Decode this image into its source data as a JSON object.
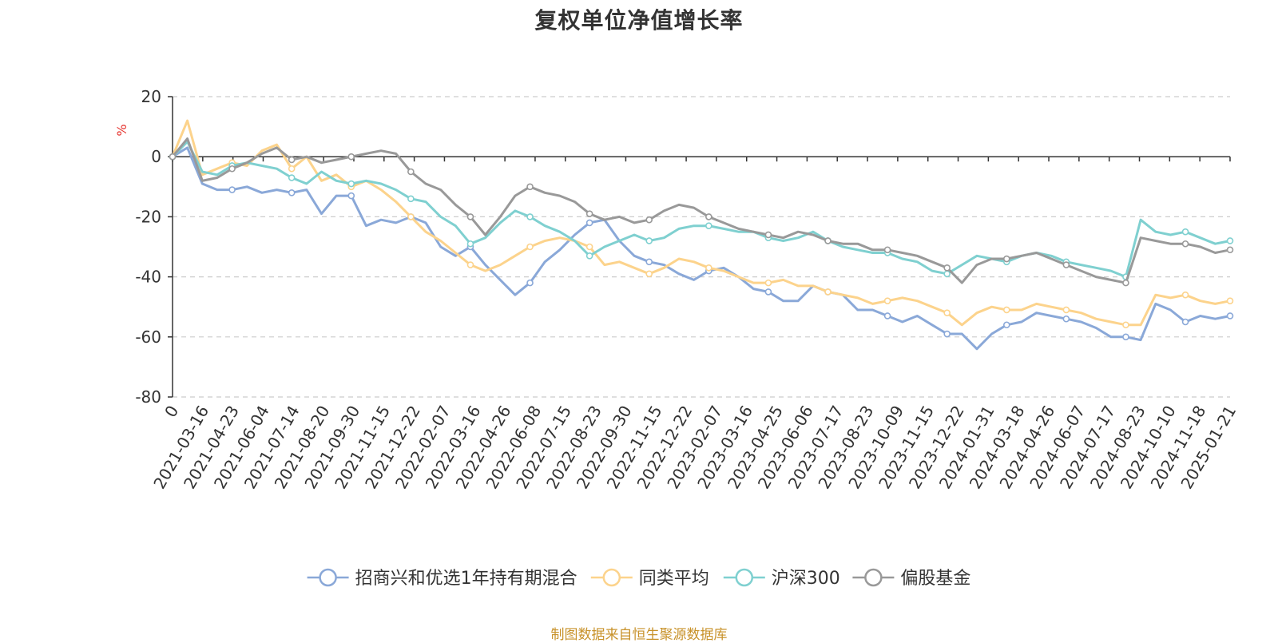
{
  "chart_data": {
    "type": "line",
    "title": "复权单位净值增长率",
    "unit": "%",
    "ylim": [
      -80,
      20
    ],
    "y_ticks": [
      20,
      0,
      -20,
      -40,
      -60,
      -80
    ],
    "grid": "horizontal dashed",
    "legend_position": "bottom-center",
    "x_origin_label": "0",
    "x_ticks": [
      "2021-03-16",
      "2021-04-23",
      "2021-06-04",
      "2021-07-14",
      "2021-08-20",
      "2021-09-30",
      "2021-11-15",
      "2021-12-22",
      "2022-02-07",
      "2022-03-16",
      "2022-04-26",
      "2022-06-08",
      "2022-07-15",
      "2022-08-23",
      "2022-09-30",
      "2022-11-15",
      "2022-12-22",
      "2023-02-07",
      "2023-03-16",
      "2023-04-25",
      "2023-06-06",
      "2023-07-17",
      "2023-08-23",
      "2023-10-09",
      "2023-11-15",
      "2023-12-22",
      "2024-01-31",
      "2024-03-18",
      "2024-04-26",
      "2024-06-07",
      "2024-07-17",
      "2024-08-23",
      "2024-10-10",
      "2024-11-18",
      "2025-01-21"
    ],
    "series": [
      {
        "name": "招商兴和优选1年持有期混合",
        "color": "#8aa8d8",
        "values": [
          0,
          3,
          -9,
          -11,
          -11,
          -10,
          -12,
          -11,
          -12,
          -11,
          -19,
          -13,
          -13,
          -23,
          -21,
          -22,
          -20,
          -22,
          -30,
          -33,
          -30,
          -36,
          -41,
          -46,
          -42,
          -35,
          -31,
          -26,
          -22,
          -21,
          -28,
          -33,
          -35,
          -36,
          -39,
          -41,
          -38,
          -37,
          -40,
          -44,
          -45,
          -48,
          -48,
          -43,
          -45,
          -46,
          -51,
          -51,
          -53,
          -55,
          -53,
          -56,
          -59,
          -59,
          -64,
          -59,
          -56,
          -55,
          -52,
          -53,
          -54,
          -55,
          -57,
          -60,
          -60,
          -61,
          -49,
          -51,
          -55,
          -53,
          -54,
          -53
        ]
      },
      {
        "name": "同类平均",
        "color": "#fcd38c",
        "values": [
          0,
          12,
          -6,
          -4,
          -2,
          -3,
          2,
          4,
          -4,
          0,
          -8,
          -6,
          -10,
          -8,
          -11,
          -15,
          -20,
          -25,
          -28,
          -32,
          -36,
          -38,
          -36,
          -33,
          -30,
          -28,
          -27,
          -28,
          -30,
          -36,
          -35,
          -37,
          -39,
          -37,
          -34,
          -35,
          -37,
          -38,
          -40,
          -42,
          -42,
          -41,
          -43,
          -43,
          -45,
          -46,
          -47,
          -49,
          -48,
          -47,
          -48,
          -50,
          -52,
          -56,
          -52,
          -50,
          -51,
          -51,
          -49,
          -50,
          -51,
          -52,
          -54,
          -55,
          -56,
          -56,
          -46,
          -47,
          -46,
          -48,
          -49,
          -48
        ]
      },
      {
        "name": "沪深300",
        "color": "#7fd0d0",
        "values": [
          0,
          5,
          -5,
          -6,
          -3,
          -2,
          -3,
          -4,
          -7,
          -9,
          -5,
          -8,
          -9,
          -8,
          -9,
          -11,
          -14,
          -15,
          -20,
          -23,
          -29,
          -27,
          -22,
          -18,
          -20,
          -23,
          -25,
          -28,
          -33,
          -30,
          -28,
          -26,
          -28,
          -27,
          -24,
          -23,
          -23,
          -24,
          -25,
          -25,
          -27,
          -28,
          -27,
          -25,
          -28,
          -30,
          -31,
          -32,
          -32,
          -34,
          -35,
          -38,
          -39,
          -36,
          -33,
          -34,
          -35,
          -33,
          -32,
          -33,
          -35,
          -36,
          -37,
          -38,
          -40,
          -21,
          -25,
          -26,
          -25,
          -27,
          -29,
          -28
        ]
      },
      {
        "name": "偏股基金",
        "color": "#999999",
        "values": [
          0,
          6,
          -8,
          -7,
          -4,
          -2,
          1,
          3,
          -1,
          0,
          -2,
          -1,
          0,
          1,
          2,
          1,
          -5,
          -9,
          -11,
          -16,
          -20,
          -26,
          -20,
          -13,
          -10,
          -12,
          -13,
          -15,
          -19,
          -21,
          -20,
          -22,
          -21,
          -18,
          -16,
          -17,
          -20,
          -22,
          -24,
          -25,
          -26,
          -27,
          -25,
          -26,
          -28,
          -29,
          -29,
          -31,
          -31,
          -32,
          -33,
          -35,
          -37,
          -42,
          -36,
          -34,
          -34,
          -33,
          -32,
          -34,
          -36,
          -38,
          -40,
          -41,
          -42,
          -27,
          -28,
          -29,
          -29,
          -30,
          -32,
          -31
        ]
      }
    ]
  },
  "source_note": "制图数据来自恒生聚源数据库"
}
